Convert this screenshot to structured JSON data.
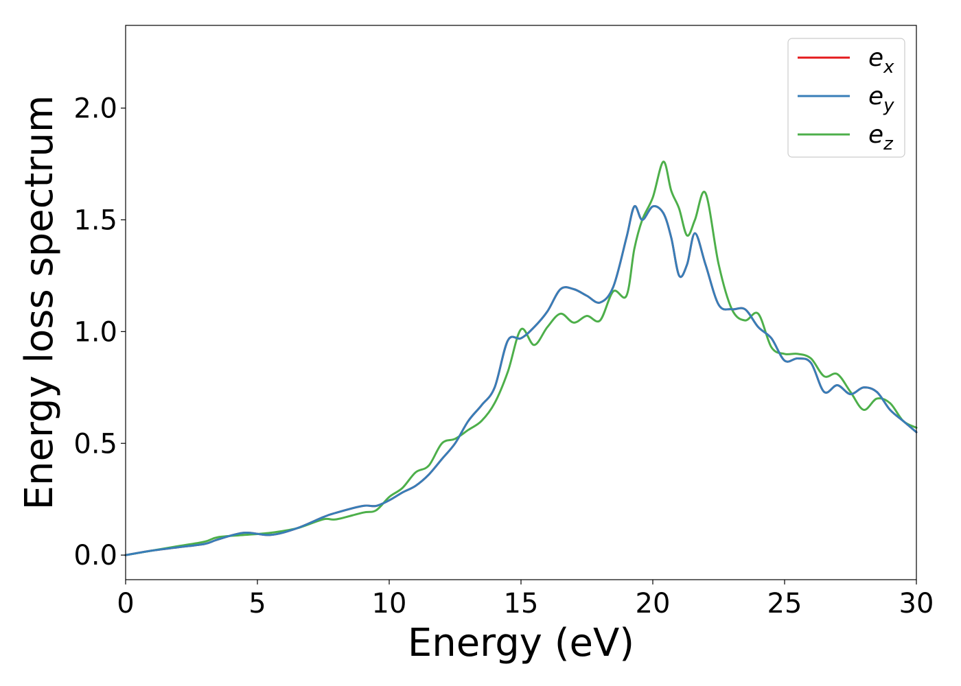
{
  "chart_data": {
    "type": "line",
    "title": "",
    "xlabel": "Energy (eV)",
    "ylabel": "Energy loss spectrum",
    "xlim": [
      0,
      30
    ],
    "ylim": [
      -0.11,
      2.37
    ],
    "x_ticks": [
      0,
      5,
      10,
      15,
      20,
      25,
      30
    ],
    "x_tick_labels": [
      "0",
      "5",
      "10",
      "15",
      "20",
      "25",
      "30"
    ],
    "y_ticks": [
      0.0,
      0.5,
      1.0,
      1.5,
      2.0
    ],
    "y_tick_labels": [
      "0.0",
      "0.5",
      "1.0",
      "1.5",
      "2.0"
    ],
    "grid": false,
    "legend_position": "top-right",
    "x": [
      0,
      1,
      2,
      3,
      3.5,
      4.5,
      5.5,
      6.5,
      7.5,
      8,
      9,
      9.5,
      10,
      10.5,
      11,
      11.5,
      12,
      12.5,
      13,
      13.5,
      14,
      14.5,
      15,
      15.5,
      16,
      16.5,
      17,
      17.5,
      18,
      18.5,
      19,
      19.3,
      19.6,
      20,
      20.4,
      20.7,
      21,
      21.3,
      21.6,
      22,
      22.5,
      23,
      23.5,
      24,
      24.5,
      25,
      25.5,
      26,
      26.5,
      27,
      27.5,
      28,
      28.5,
      29,
      29.5,
      30
    ],
    "series": [
      {
        "name": "e",
        "name_sub": "x",
        "color": "#e41a1c",
        "values": [
          0.0,
          0.02,
          0.035,
          0.05,
          0.07,
          0.1,
          0.09,
          0.12,
          0.17,
          0.19,
          0.22,
          0.22,
          0.245,
          0.28,
          0.31,
          0.36,
          0.43,
          0.5,
          0.6,
          0.67,
          0.75,
          0.96,
          0.97,
          1.02,
          1.09,
          1.19,
          1.19,
          1.16,
          1.13,
          1.2,
          1.42,
          1.56,
          1.5,
          1.56,
          1.53,
          1.42,
          1.25,
          1.3,
          1.44,
          1.3,
          1.12,
          1.1,
          1.1,
          1.02,
          0.97,
          0.87,
          0.88,
          0.86,
          0.73,
          0.76,
          0.72,
          0.75,
          0.73,
          0.65,
          0.6,
          0.55
        ]
      },
      {
        "name": "e",
        "name_sub": "y",
        "color": "#377eb8",
        "values": [
          0.0,
          0.02,
          0.035,
          0.05,
          0.07,
          0.1,
          0.09,
          0.12,
          0.17,
          0.19,
          0.22,
          0.22,
          0.245,
          0.28,
          0.31,
          0.36,
          0.43,
          0.5,
          0.6,
          0.67,
          0.75,
          0.96,
          0.97,
          1.02,
          1.09,
          1.19,
          1.19,
          1.16,
          1.13,
          1.2,
          1.42,
          1.56,
          1.5,
          1.56,
          1.53,
          1.42,
          1.25,
          1.3,
          1.44,
          1.3,
          1.12,
          1.1,
          1.1,
          1.02,
          0.97,
          0.87,
          0.88,
          0.86,
          0.73,
          0.76,
          0.72,
          0.75,
          0.73,
          0.65,
          0.6,
          0.55
        ]
      },
      {
        "name": "e",
        "name_sub": "z",
        "color": "#4daf4a",
        "values": [
          0.0,
          0.02,
          0.04,
          0.06,
          0.08,
          0.09,
          0.1,
          0.12,
          0.16,
          0.16,
          0.19,
          0.2,
          0.26,
          0.3,
          0.37,
          0.4,
          0.5,
          0.52,
          0.56,
          0.6,
          0.68,
          0.82,
          1.01,
          0.94,
          1.02,
          1.08,
          1.04,
          1.07,
          1.05,
          1.18,
          1.16,
          1.37,
          1.5,
          1.6,
          1.76,
          1.63,
          1.55,
          1.43,
          1.5,
          1.62,
          1.3,
          1.1,
          1.05,
          1.08,
          0.93,
          0.9,
          0.9,
          0.88,
          0.8,
          0.81,
          0.73,
          0.65,
          0.7,
          0.68,
          0.6,
          0.57
        ]
      }
    ]
  }
}
